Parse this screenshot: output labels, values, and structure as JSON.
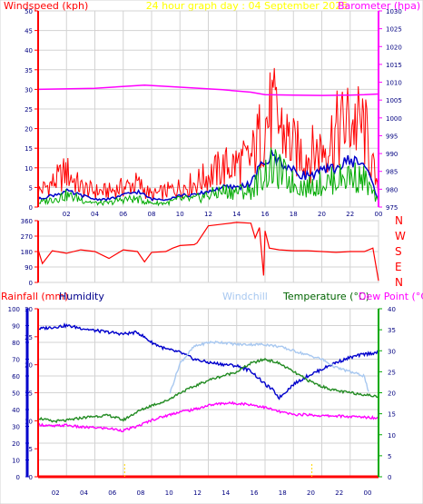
{
  "page": {
    "title": "24 hour graph day : 04 September 2025",
    "colors": {
      "frame": "#d3d3d3",
      "grid": "#d3d3d3",
      "axis_red": "#ff0000",
      "axis_blue": "#0000cc",
      "axis_green": "#00aa00",
      "title": "#ffff00",
      "tick_text": "#000080"
    }
  },
  "chart_data": [
    {
      "type": "line",
      "title": "24 hour graph day : 04 September 2025",
      "ylabel": "Windspeed (kph)",
      "y2label": "Barometer (hpa)",
      "x_ticks": [
        "02",
        "04",
        "06",
        "08",
        "10",
        "12",
        "14",
        "16",
        "18",
        "20",
        "22",
        "00"
      ],
      "ylim": [
        0,
        50
      ],
      "yticks": [
        0,
        5,
        10,
        15,
        20,
        25,
        30,
        35,
        40,
        45,
        50
      ],
      "y2lim": [
        975,
        1030
      ],
      "y2ticks": [
        975,
        980,
        985,
        990,
        995,
        1000,
        1005,
        1010,
        1015,
        1020,
        1025,
        1030
      ],
      "grid": true,
      "series": [
        {
          "name": "Windspeed (kph)",
          "color": "#ff0000",
          "axis": "left",
          "style": "gust",
          "x": [
            0,
            1,
            2,
            3,
            4,
            5,
            6,
            7,
            8,
            9,
            10,
            11,
            12,
            13,
            14,
            15,
            15.8,
            16.5,
            17,
            18,
            19,
            20,
            21,
            22,
            23,
            24
          ],
          "values": [
            4,
            6,
            9,
            5,
            4,
            4,
            5,
            6,
            3,
            4,
            5,
            6,
            8,
            10,
            11,
            12,
            20,
            24,
            21,
            15,
            13,
            15,
            19,
            22,
            20,
            3
          ]
        },
        {
          "name": "Average speed (kph)",
          "color": "#0000cc",
          "axis": "left",
          "style": "line",
          "x": [
            0,
            1,
            2,
            3,
            4,
            5,
            6,
            7,
            8,
            9,
            10,
            11,
            12,
            13,
            14,
            15,
            15.8,
            16.5,
            17,
            18,
            19,
            20,
            21,
            22,
            23,
            24
          ],
          "values": [
            2,
            3,
            4,
            3,
            2,
            2,
            3,
            4,
            2,
            2,
            3,
            3,
            4,
            5,
            5,
            6,
            11,
            13,
            12,
            9,
            8,
            9,
            10,
            12,
            11,
            2
          ]
        },
        {
          "name": "Wind run",
          "color": "#00aa00",
          "axis": "left",
          "style": "gust",
          "x": [
            0,
            1,
            2,
            3,
            4,
            5,
            6,
            7,
            8,
            9,
            10,
            11,
            12,
            13,
            14,
            15,
            15.8,
            16.5,
            17,
            18,
            19,
            20,
            21,
            22,
            23,
            24
          ],
          "values": [
            1,
            2,
            3,
            2,
            1,
            1,
            2,
            2,
            1,
            1,
            2,
            2,
            3,
            4,
            4,
            4,
            8,
            10,
            9,
            6,
            5,
            6,
            7,
            8,
            7,
            1
          ]
        },
        {
          "name": "Barometer (hpa)",
          "color": "#ff00ff",
          "axis": "right",
          "style": "line",
          "x": [
            0,
            4,
            7.5,
            10,
            13,
            15,
            16,
            18,
            20,
            22,
            23,
            24
          ],
          "values": [
            1008,
            1008.3,
            1009.2,
            1008.6,
            1007.9,
            1007.2,
            1006.5,
            1006.4,
            1006.3,
            1006.4,
            1006.5,
            1006.7
          ]
        }
      ]
    },
    {
      "type": "line",
      "ylabel": "Wind direction",
      "yticks": [
        0,
        90,
        180,
        270,
        360
      ],
      "y2ticks": [
        "N",
        "W",
        "S",
        "E",
        "N"
      ],
      "ylim": [
        0,
        360
      ],
      "grid": true,
      "series": [
        {
          "name": "Wind direction",
          "color": "#ff0000",
          "x": [
            0,
            0.3,
            1,
            2,
            3,
            4,
            5,
            6,
            7,
            7.5,
            8,
            9,
            9.5,
            10,
            11,
            11.2,
            12,
            13,
            14,
            15,
            15.3,
            15.6,
            15.9,
            16,
            16.3,
            17,
            18,
            19,
            20,
            21,
            22,
            23,
            23.6,
            24
          ],
          "values": [
            190,
            110,
            185,
            170,
            190,
            180,
            140,
            190,
            180,
            120,
            175,
            180,
            200,
            215,
            220,
            230,
            330,
            340,
            350,
            345,
            260,
            320,
            40,
            300,
            200,
            190,
            185,
            185,
            180,
            175,
            180,
            180,
            200,
            10
          ]
        }
      ]
    },
    {
      "type": "line",
      "ylabel": "Rainfall (mm)",
      "y2label": "Humidity",
      "y3label": "Windchill",
      "y4label": "Temperature (°C)",
      "y5label": "Dew Point (°C)",
      "ylim": [
        0,
        100
      ],
      "yticks": [
        0,
        10,
        20,
        30,
        40,
        50,
        60,
        70,
        80,
        90,
        100
      ],
      "y_inner_ticks": [
        0,
        5,
        10,
        15,
        20,
        25,
        30
      ],
      "y2ticks": [
        0,
        5,
        10,
        15,
        20,
        25,
        30,
        35,
        40
      ],
      "y2lim": [
        0,
        40
      ],
      "x_ticks": [
        "02",
        "04",
        "06",
        "08",
        "10",
        "12",
        "14",
        "16",
        "18",
        "20",
        "22",
        "00"
      ],
      "grid": true,
      "series": [
        {
          "name": "Humidity",
          "color": "#0000cc",
          "axis": "left",
          "x": [
            0,
            2,
            4,
            6,
            7,
            8,
            9,
            10,
            11,
            12,
            13,
            14,
            15,
            16,
            16.5,
            17,
            18,
            19,
            20,
            21,
            22,
            23,
            24
          ],
          "values": [
            88,
            90,
            87,
            85,
            86,
            80,
            76,
            74,
            70,
            68,
            67,
            66,
            63,
            55,
            52,
            47,
            55,
            60,
            64,
            68,
            71,
            73,
            74
          ]
        },
        {
          "name": "Windchill",
          "color": "#a8c8f0",
          "axis": "right",
          "x": [
            9.3,
            10,
            11,
            12,
            13,
            14,
            15,
            16,
            17,
            18,
            19,
            20,
            21,
            22,
            23,
            23.3
          ],
          "values": [
            20,
            27,
            31,
            32,
            32,
            31.5,
            31.5,
            31.5,
            31,
            30,
            29,
            28,
            26,
            25,
            24,
            20
          ]
        },
        {
          "name": "Temperature (°C)",
          "color": "#228b22",
          "axis": "right",
          "x": [
            0,
            1,
            2,
            3,
            4,
            5,
            6,
            7,
            8,
            9,
            10,
            11,
            12,
            13,
            14,
            15,
            16,
            17,
            18,
            19,
            20,
            21,
            22,
            23,
            24
          ],
          "values": [
            14,
            13.2,
            13.4,
            14,
            14.4,
            14.6,
            13.5,
            15.5,
            17,
            18,
            20,
            21.5,
            23,
            24,
            25,
            27,
            28,
            27,
            25,
            23,
            21.5,
            20.5,
            20,
            19.6,
            19
          ]
        },
        {
          "name": "Dew Point (°C)",
          "color": "#ff00ff",
          "axis": "right",
          "x": [
            0,
            1,
            2,
            3,
            4,
            5,
            6,
            7,
            8,
            9,
            10,
            11,
            12,
            13,
            14,
            15,
            16,
            17,
            18,
            19,
            20,
            21,
            22,
            23,
            24
          ],
          "values": [
            12.5,
            12,
            12.3,
            11.8,
            11.7,
            11.5,
            11,
            12,
            13.5,
            14.5,
            15.5,
            16,
            17,
            17.5,
            17.5,
            17.2,
            16.5,
            15.5,
            14.8,
            14.8,
            14.5,
            14.5,
            14.3,
            14.2,
            14
          ]
        },
        {
          "name": "Rainfall (mm)",
          "color": "#ff0000",
          "axis": "left",
          "x": [
            0,
            24
          ],
          "values": [
            0,
            0
          ]
        },
        {
          "name": "Rain events",
          "color": "#ffd700",
          "axis": "left",
          "style": "marker",
          "x": [
            6.1,
            19.3
          ],
          "values": [
            0,
            0
          ]
        }
      ]
    }
  ]
}
